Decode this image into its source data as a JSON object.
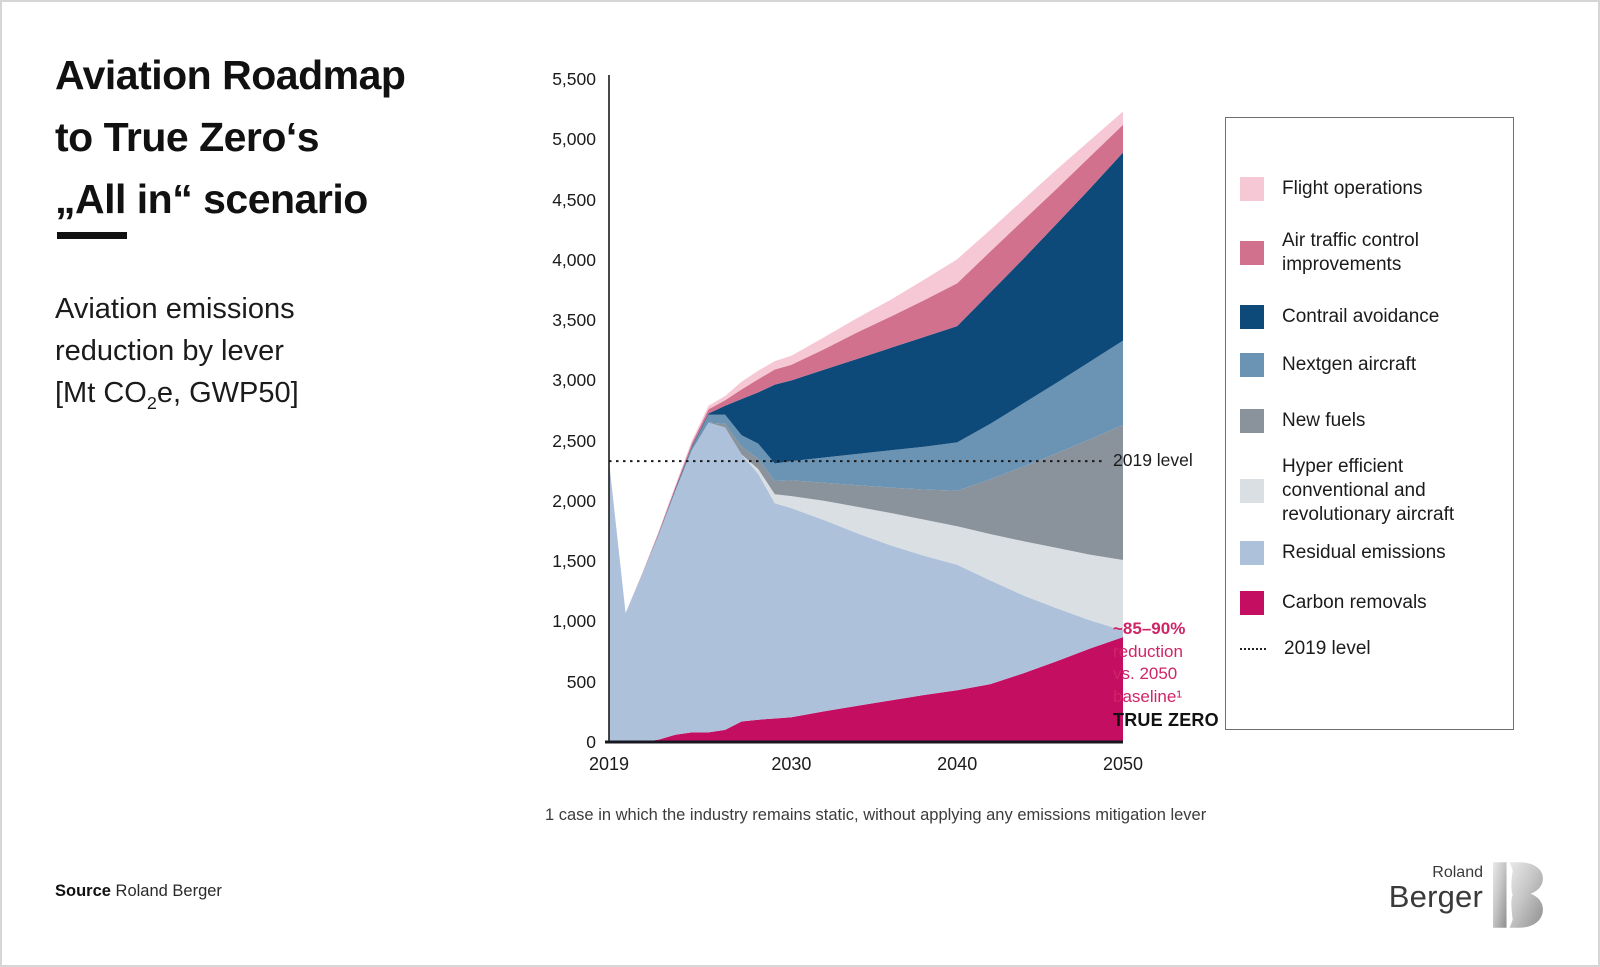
{
  "title": {
    "lines": [
      "Aviation Roadmap",
      "to True Zero‘s",
      "„All in“ scenario"
    ]
  },
  "subtitle": {
    "line1": "Aviation emissions",
    "line2": "reduction by lever",
    "line3_pre": "[Mt CO",
    "line3_sub": "2",
    "line3_post": "e, GWP50]"
  },
  "annotations": {
    "level_label": "2019 level",
    "reduction_headline": "~85–90%",
    "reduction_lines": [
      "reduction",
      "vs. 2050",
      "baseline¹"
    ],
    "true_zero": "TRUE ZERO"
  },
  "legend": {
    "items": [
      {
        "id": "flight_ops",
        "label": "Flight operations",
        "color": "#f6c8d5",
        "type": "swatch"
      },
      {
        "id": "atc",
        "label": "Air traffic control improvements",
        "color": "#d1718e",
        "type": "swatch"
      },
      {
        "id": "contrail",
        "label": "Contrail avoidance",
        "color": "#0d4a7a",
        "type": "swatch"
      },
      {
        "id": "nextgen",
        "label": "Nextgen aircraft",
        "color": "#6b94b4",
        "type": "swatch"
      },
      {
        "id": "new_fuels",
        "label": "New fuels",
        "color": "#8a929b",
        "type": "swatch"
      },
      {
        "id": "hyper",
        "label": "Hyper efficient conventional and revolutionary aircraft",
        "color": "#dadfe3",
        "type": "swatch"
      },
      {
        "id": "residual",
        "label": "Residual emissions",
        "color": "#aec1db",
        "type": "swatch"
      },
      {
        "id": "carbon",
        "label": "Carbon removals",
        "color": "#c30e62",
        "type": "swatch"
      },
      {
        "id": "level_2019",
        "label": "2019 level",
        "color": "#222222",
        "type": "dotted"
      }
    ]
  },
  "chart_data": {
    "type": "area",
    "stacked": true,
    "title": "Aviation emissions reduction by lever [Mt CO2e, GWP50]",
    "xlabel": "",
    "ylabel": "Mt CO2e (GWP50)",
    "ylim": [
      0,
      5500
    ],
    "grid": false,
    "legend_position": "right",
    "x": [
      2019,
      2020,
      2021,
      2022,
      2023,
      2024,
      2025,
      2026,
      2027,
      2028,
      2029,
      2030,
      2032,
      2034,
      2036,
      2038,
      2040,
      2042,
      2044,
      2046,
      2048,
      2050
    ],
    "xticks": [
      2019,
      2030,
      2040,
      2050
    ],
    "ytick_step": 500,
    "ytick_labels": [
      "0",
      "500",
      "1,000",
      "1,500",
      "2,000",
      "2,500",
      "3,000",
      "3,500",
      "4,000",
      "4,500",
      "5,000",
      "5,500"
    ],
    "reference_line": {
      "label": "2019 level",
      "value": 2330,
      "style": "dotted"
    },
    "series": [
      {
        "id": "carbon",
        "name": "Carbon removals",
        "color": "#c30e62",
        "values": [
          0,
          0,
          0,
          20,
          60,
          80,
          80,
          100,
          170,
          185,
          195,
          205,
          255,
          300,
          345,
          390,
          430,
          480,
          570,
          670,
          775,
          870
        ]
      },
      {
        "id": "residual",
        "name": "Residual emissions",
        "color": "#aec1db",
        "values": [
          2330,
          1070,
          1390,
          1700,
          2020,
          2340,
          2570,
          2510,
          2215,
          2040,
          1785,
          1735,
          1585,
          1430,
          1285,
          1155,
          1040,
          860,
          645,
          440,
          235,
          55
        ]
      },
      {
        "id": "hyper",
        "name": "Hyper efficient conventional and revolutionary aircraft",
        "color": "#dadfe3",
        "values": [
          0,
          0,
          0,
          0,
          0,
          0,
          0,
          0,
          0,
          40,
          75,
          100,
          160,
          220,
          270,
          300,
          320,
          385,
          450,
          500,
          545,
          585
        ]
      },
      {
        "id": "new_fuels",
        "name": "New fuels",
        "color": "#8a929b",
        "values": [
          0,
          0,
          0,
          0,
          0,
          0,
          0,
          30,
          65,
          85,
          110,
          130,
          150,
          180,
          210,
          250,
          295,
          455,
          620,
          785,
          955,
          1120
        ]
      },
      {
        "id": "nextgen",
        "name": "Nextgen aircraft",
        "color": "#6b94b4",
        "values": [
          0,
          0,
          0,
          5,
          10,
          25,
          65,
          75,
          95,
          125,
          145,
          160,
          210,
          260,
          310,
          355,
          400,
          460,
          525,
          585,
          645,
          700
        ]
      },
      {
        "id": "contrail",
        "name": "Contrail avoidance",
        "color": "#0d4a7a",
        "values": [
          0,
          0,
          0,
          5,
          10,
          10,
          10,
          75,
          300,
          425,
          655,
          670,
          730,
          790,
          850,
          910,
          965,
          1090,
          1200,
          1320,
          1435,
          1560
        ]
      },
      {
        "id": "atc",
        "name": "Air traffic control improvements",
        "color": "#d1718e",
        "values": [
          0,
          0,
          5,
          10,
          15,
          25,
          35,
          45,
          80,
          110,
          125,
          130,
          170,
          220,
          260,
          305,
          355,
          340,
          320,
          290,
          265,
          230
        ]
      },
      {
        "id": "flight_ops",
        "name": "Flight operations",
        "color": "#f6c8d5",
        "values": [
          0,
          0,
          5,
          10,
          15,
          20,
          30,
          35,
          65,
          70,
          70,
          75,
          100,
          120,
          140,
          170,
          200,
          180,
          170,
          160,
          135,
          110
        ]
      }
    ]
  },
  "footnote": "1  case in which the industry remains static, without applying any emissions mitigation lever",
  "source": {
    "label": "Source",
    "value": "Roland Berger"
  },
  "logo": {
    "top": "Roland",
    "bottom": "Berger"
  },
  "colors": {
    "accent_crimson": "#c30e62",
    "annotation_text": "#d02467",
    "axis": "#1b1b1b"
  }
}
